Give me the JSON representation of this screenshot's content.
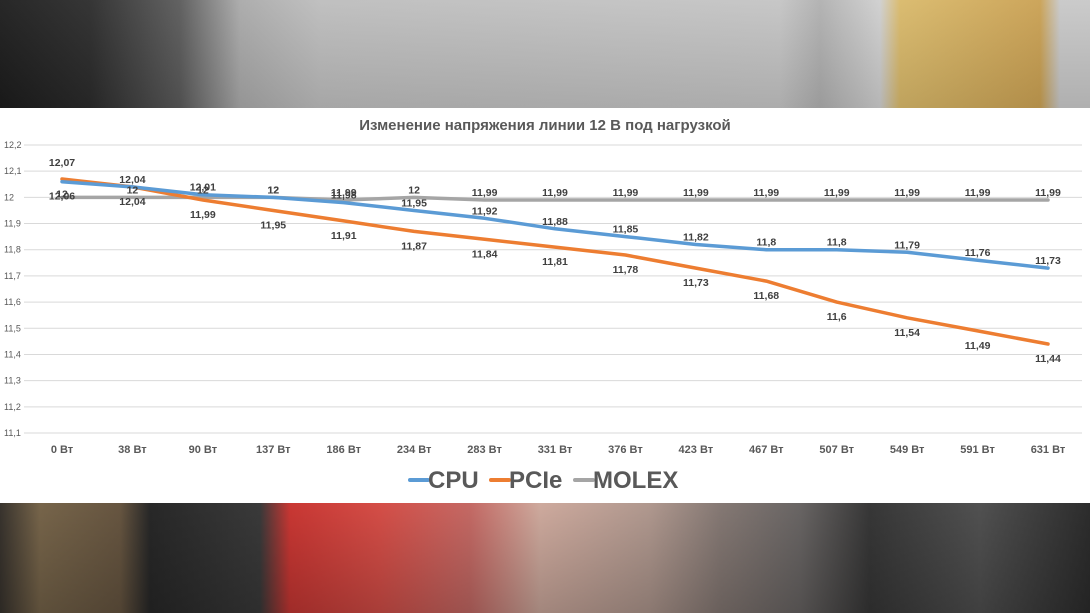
{
  "chart_data": {
    "type": "line",
    "title": "Изменение напряжения линии 12 В под нагрузкой",
    "xlabel": "",
    "ylabel": "",
    "categories": [
      "0 Вт",
      "38 Вт",
      "90 Вт",
      "137 Вт",
      "186 Вт",
      "234 Вт",
      "283 Вт",
      "331 Вт",
      "376 Вт",
      "423 Вт",
      "467 Вт",
      "507 Вт",
      "549 Вт",
      "591 Вт",
      "631 Вт"
    ],
    "ylim": [
      11.1,
      12.2
    ],
    "yticks": [
      "12,2",
      "12,1",
      "12",
      "11,9",
      "11,8",
      "11,7",
      "11,6",
      "11,5",
      "11,4",
      "11,3",
      "11,2",
      "11,1"
    ],
    "grid": true,
    "legend_position": "bottom",
    "series": [
      {
        "name": "CPU",
        "color": "#5b9bd5",
        "values": [
          12.06,
          12.04,
          12.01,
          12,
          11.98,
          11.95,
          11.92,
          11.88,
          11.85,
          11.82,
          11.8,
          11.8,
          11.79,
          11.76,
          11.73
        ],
        "labels": [
          "12,06",
          "12,04",
          "12,01",
          "12",
          "11,98",
          "11,95",
          "11,92",
          "11,88",
          "11,85",
          "11,82",
          "11,8",
          "11,8",
          "11,79",
          "11,76",
          "11,73"
        ]
      },
      {
        "name": "PCIe",
        "color": "#ed7d31",
        "values": [
          12.07,
          12.04,
          11.99,
          11.95,
          11.91,
          11.87,
          11.84,
          11.81,
          11.78,
          11.73,
          11.68,
          11.6,
          11.54,
          11.49,
          11.44
        ],
        "labels": [
          "12,07",
          "12,04",
          "11,99",
          "11,95",
          "11,91",
          "11,87",
          "11,84",
          "11,81",
          "11,78",
          "11,73",
          "11,68",
          "11,6",
          "11,54",
          "11,49",
          "11,44"
        ]
      },
      {
        "name": "MOLEX",
        "color": "#a5a5a5",
        "values": [
          12,
          12,
          12,
          12,
          11.99,
          12,
          11.99,
          11.99,
          11.99,
          11.99,
          11.99,
          11.99,
          11.99,
          11.99,
          11.99
        ],
        "labels": [
          "12",
          "12",
          "12",
          "12",
          "11,99",
          "12",
          "11,99",
          "11,99",
          "11,99",
          "11,99",
          "11,99",
          "11,99",
          "11,99",
          "11,99",
          "11,99"
        ]
      }
    ]
  }
}
